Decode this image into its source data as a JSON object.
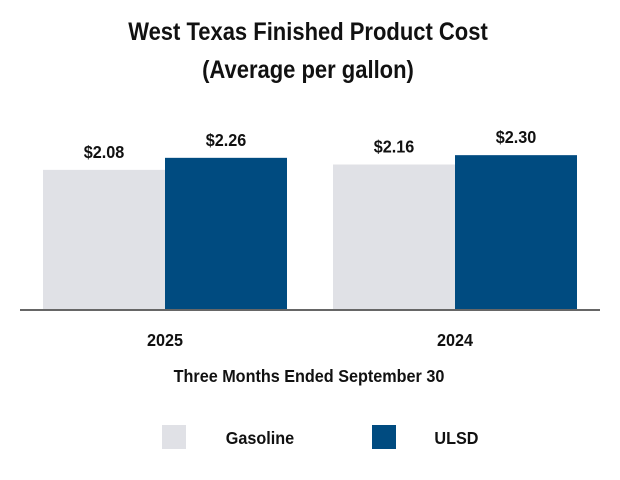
{
  "chart_data": {
    "type": "bar",
    "title": "West Texas Finished Product Cost",
    "subtitle": "(Average per gallon)",
    "xlabel": "Three Months Ended September 30",
    "ylabel": "",
    "categories": [
      "2025",
      "2024"
    ],
    "series": [
      {
        "name": "Gasoline",
        "color": "#e0e1e6",
        "values": [
          2.08,
          2.16
        ],
        "labels": [
          "$2.08",
          "$2.16"
        ]
      },
      {
        "name": "ULSD",
        "color": "#004b80",
        "values": [
          2.26,
          2.3
        ],
        "labels": [
          "$2.26",
          "$2.30"
        ]
      }
    ],
    "ylim": [
      0,
      4.5
    ],
    "grid": false,
    "legend": "bottom"
  }
}
